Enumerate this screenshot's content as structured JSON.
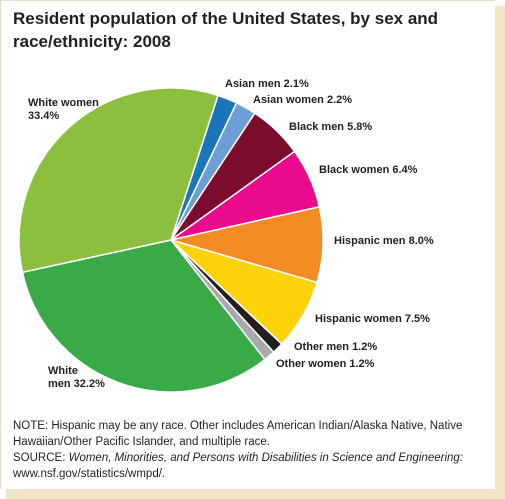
{
  "title": "Resident population of the United States, by sex and race/ethnicity: 2008",
  "chart_data": {
    "type": "pie",
    "title": "Resident population of the United States, by sex and race/ethnicity: 2008",
    "slices": [
      {
        "label": "Asian men",
        "value": 2.1,
        "value_label": "2.1%",
        "color": "#1b75bb"
      },
      {
        "label": "Asian women",
        "value": 2.2,
        "value_label": "2.2%",
        "color": "#6d9fd6"
      },
      {
        "label": "Black men",
        "value": 5.8,
        "value_label": "5.8%",
        "color": "#7b0c2e"
      },
      {
        "label": "Black women",
        "value": 6.4,
        "value_label": "6.4%",
        "color": "#ea0a8c"
      },
      {
        "label": "Hispanic men",
        "value": 8.0,
        "value_label": "8.0%",
        "color": "#f38a22"
      },
      {
        "label": "Hispanic women",
        "value": 7.5,
        "value_label": "7.5%",
        "color": "#fcd20a"
      },
      {
        "label": "Other men",
        "value": 1.2,
        "value_label": "1.2%",
        "color": "#231f20"
      },
      {
        "label": "Other women",
        "value": 1.2,
        "value_label": "1.2%",
        "color": "#a7a9ac"
      },
      {
        "label": "White men",
        "value": 32.2,
        "value_label": "32.2%",
        "color": "#3aaa49"
      },
      {
        "label": "White women",
        "value": 33.4,
        "value_label": "33.4%",
        "color": "#8dbf3f"
      }
    ],
    "labels": [
      {
        "line1": "Asian men 2.1%",
        "line2": ""
      },
      {
        "line1": "Asian women 2.2%",
        "line2": ""
      },
      {
        "line1": "Black men 5.8%",
        "line2": ""
      },
      {
        "line1": "Black women 6.4%",
        "line2": ""
      },
      {
        "line1": "Hispanic men 8.0%",
        "line2": ""
      },
      {
        "line1": "Hispanic women 7.5%",
        "line2": ""
      },
      {
        "line1": "Other men 1.2%",
        "line2": ""
      },
      {
        "line1": "Other women 1.2%",
        "line2": ""
      },
      {
        "line1": "White",
        "line2": "men 32.2%"
      },
      {
        "line1": "White women",
        "line2": "33.4%"
      }
    ]
  },
  "note": {
    "note_text": "NOTE: Hispanic may be any race. Other includes American Indian/Alaska Native, Native Hawaiian/Other Pacific Islander, and multiple race.",
    "source_prefix": "SOURCE: ",
    "source_title": "Women, Minorities, and Persons with Disabilities in Science and Engineering:",
    "source_url": " www.nsf.gov/statistics/wmpd/."
  }
}
